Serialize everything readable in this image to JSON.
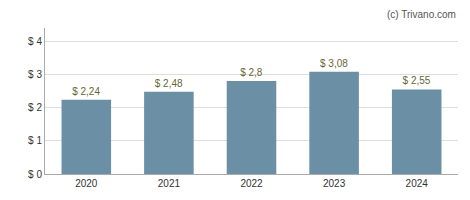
{
  "chart_data": {
    "type": "bar",
    "categories": [
      "2020",
      "2021",
      "2022",
      "2023",
      "2024"
    ],
    "values": [
      2.24,
      2.48,
      2.8,
      3.08,
      2.55
    ],
    "value_labels": [
      "$ 2,24",
      "$ 2,48",
      "$ 2,8",
      "$ 3,08",
      "$ 2,55"
    ],
    "data_labels": true,
    "color": "#6b8fa4",
    "ylim": [
      0,
      4.4
    ],
    "yticks": [
      {
        "value": 0,
        "label": "$ 0"
      },
      {
        "value": 1,
        "label": "$ 1"
      },
      {
        "value": 2,
        "label": "$ 2"
      },
      {
        "value": 3,
        "label": "$ 3"
      },
      {
        "value": 4,
        "label": "$ 4"
      }
    ],
    "grid": true,
    "annotations": [
      "(c) Trivano.com"
    ]
  }
}
